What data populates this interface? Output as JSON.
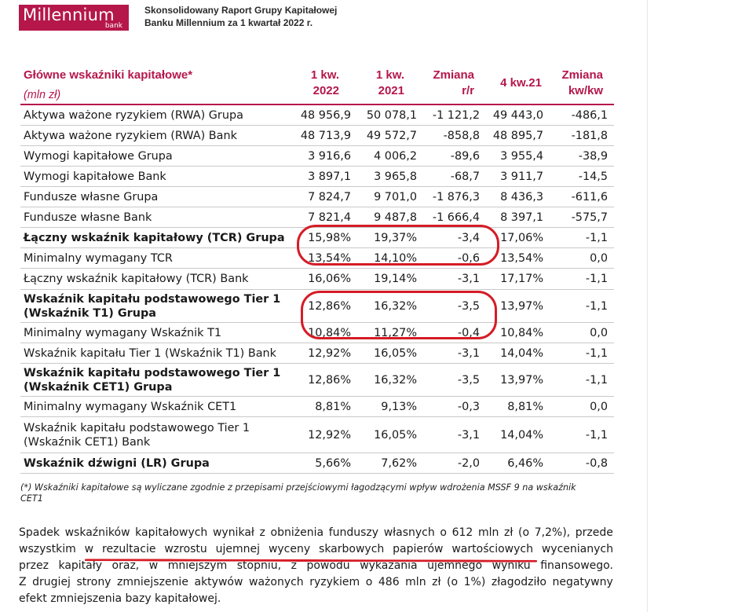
{
  "header": {
    "logo": {
      "brand": "Millennium",
      "sub": "bank"
    },
    "report_title_line1": "Skonsolidowany Raport Grupy Kapitałowej",
    "report_title_line2": "Banku Millennium za 1 kwartał 2022 r."
  },
  "table": {
    "title": "Główne wskaźniki kapitałowe*",
    "unit": "(mln zł)",
    "columns": [
      {
        "line1": "1 kw.",
        "line2": "2022"
      },
      {
        "line1": "1 kw.",
        "line2": "2021"
      },
      {
        "line1": "Zmiana",
        "line2": "r/r"
      },
      {
        "line1": "4 kw.21",
        "line2": ""
      },
      {
        "line1": "Zmiana",
        "line2": "kw/kw"
      }
    ],
    "rows": [
      {
        "label": "Aktywa ważone ryzykiem (RWA) Grupa",
        "values": [
          "48 956,9",
          "50 078,1",
          "-1 121,2",
          "49 443,0",
          "-486,1"
        ]
      },
      {
        "label": "Aktywa ważone ryzykiem (RWA) Bank",
        "values": [
          "48 713,9",
          "49 572,7",
          "-858,8",
          "48 895,7",
          "-181,8"
        ]
      },
      {
        "label": "Wymogi kapitałowe Grupa",
        "values": [
          "3 916,6",
          "4 006,2",
          "-89,6",
          "3 955,4",
          "-38,9"
        ]
      },
      {
        "label": "Wymogi kapitałowe Bank",
        "values": [
          "3 897,1",
          "3 965,8",
          "-68,7",
          "3 911,7",
          "-14,5"
        ]
      },
      {
        "label": "Fundusze własne Grupa",
        "values": [
          "7 824,7",
          "9 701,0",
          "-1 876,3",
          "8 436,3",
          "-611,6"
        ]
      },
      {
        "label": "Fundusze własne Bank",
        "values": [
          "7 821,4",
          "9 487,8",
          "-1 666,4",
          "8 397,1",
          "-575,7"
        ]
      },
      {
        "label": "Łączny wskaźnik kapitałowy (TCR) Grupa",
        "values": [
          "15,98%",
          "19,37%",
          "-3,4",
          "17,06%",
          "-1,1"
        ]
      },
      {
        "label": "Minimalny wymagany TCR",
        "values": [
          "13,54%",
          "14,10%",
          "-0,6",
          "13,54%",
          "0,0"
        ]
      },
      {
        "label": "Łączny wskaźnik kapitałowy (TCR) Bank",
        "values": [
          "16,06%",
          "19,14%",
          "-3,1",
          "17,17%",
          "-1,1"
        ]
      },
      {
        "label": "Wskaźnik kapitału podstawowego Tier 1",
        "label2": "(Wskaźnik T1) Grupa",
        "values": [
          "12,86%",
          "16,32%",
          "-3,5",
          "13,97%",
          "-1,1"
        ]
      },
      {
        "label": "Minimalny wymagany Wskaźnik T1",
        "values": [
          "10,84%",
          "11,27%",
          "-0,4",
          "10,84%",
          "0,0"
        ]
      },
      {
        "label": "Wskaźnik kapitału Tier 1 (Wskaźnik T1) Bank",
        "values": [
          "12,92%",
          "16,05%",
          "-3,1",
          "14,04%",
          "-1,1"
        ]
      },
      {
        "label": "Wskaźnik kapitału podstawowego Tier 1",
        "label2": "(Wskaźnik CET1) Grupa",
        "values": [
          "12,86%",
          "16,32%",
          "-3,5",
          "13,97%",
          "-1,1"
        ]
      },
      {
        "label": "Minimalny wymagany Wskaźnik CET1",
        "values": [
          "8,81%",
          "9,13%",
          "-0,3",
          "8,81%",
          "0,0"
        ]
      },
      {
        "label": "Wskaźnik kapitału podstawowego Tier 1",
        "label2": "(Wskaźnik CET1) Bank",
        "values": [
          "12,92%",
          "16,05%",
          "-3,1",
          "14,04%",
          "-1,1"
        ]
      },
      {
        "label": "Wskaźnik dźwigni (LR) Grupa",
        "values": [
          "5,66%",
          "7,62%",
          "-2,0",
          "6,46%",
          "-0,8"
        ]
      }
    ]
  },
  "footnote": {
    "line1": "(*) Wskaźniki kapitałowe są wyliczane zgodnie z przepisami przejściowymi łagodzącymi wpływ wdrożenia MSSF 9 na wskaźnik",
    "line2": "CET1"
  },
  "paragraph": {
    "lines": [
      "Spadek wskaźników kapitałowych wynikał z obniżenia funduszy własnych o 612 mln zł (o 7,2%), przede",
      "wszystkim w rezultacie wzrostu ujemnej wyceny skarbowych papierów wartościowych wycenianych",
      "przez kapitały oraz, w mniejszym stopniu, z powodu wykazania ujemnego wyniku finansowego.",
      "Z drugiej strony zmniejszenie aktywów ważonych ryzykiem o 486 mln zł (o 1%) złagodziło negatywny",
      "efekt zmniejszenia bazy kapitałowej."
    ]
  },
  "colors": {
    "brand": "#b5174b",
    "highlight": "#d51c26"
  }
}
